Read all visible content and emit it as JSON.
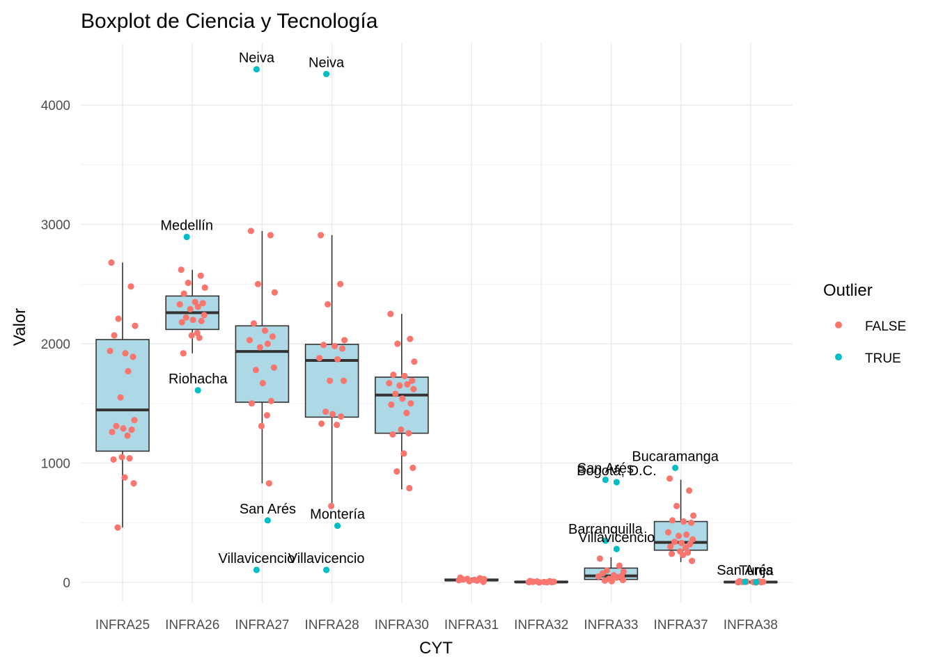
{
  "chart_data": {
    "type": "box",
    "title": "Boxplot de Ciencia y Tecnología",
    "xlabel": "CYT",
    "ylabel": "Valor",
    "ylim": [
      -150,
      4400
    ],
    "yticks": [
      0,
      1000,
      2000,
      3000,
      4000
    ],
    "categories": [
      "INFRA25",
      "INFRA26",
      "INFRA27",
      "INFRA28",
      "INFRA30",
      "INFRA31",
      "INFRA32",
      "INFRA33",
      "INFRA37",
      "INFRA38"
    ],
    "grid": true,
    "box_fill": "#add8e6",
    "boxes": [
      {
        "category": "INFRA25",
        "lower": 460,
        "q1": 1100,
        "median": 1445,
        "q3": 2035,
        "upper": 2680
      },
      {
        "category": "INFRA26",
        "lower": 1920,
        "q1": 2120,
        "median": 2260,
        "q3": 2400,
        "upper": 2620
      },
      {
        "category": "INFRA27",
        "lower": 830,
        "q1": 1510,
        "median": 1935,
        "q3": 2150,
        "upper": 2945
      },
      {
        "category": "INFRA28",
        "lower": 640,
        "q1": 1385,
        "median": 1860,
        "q3": 1995,
        "upper": 2910
      },
      {
        "category": "INFRA30",
        "lower": 780,
        "q1": 1250,
        "median": 1570,
        "q3": 1720,
        "upper": 2250
      },
      {
        "category": "INFRA31",
        "lower": 5,
        "q1": 15,
        "median": 20,
        "q3": 28,
        "upper": 40
      },
      {
        "category": "INFRA32",
        "lower": 0,
        "q1": 2,
        "median": 4,
        "q3": 7,
        "upper": 12
      },
      {
        "category": "INFRA33",
        "lower": 10,
        "q1": 25,
        "median": 55,
        "q3": 120,
        "upper": 210
      },
      {
        "category": "INFRA37",
        "lower": 170,
        "q1": 270,
        "median": 335,
        "q3": 510,
        "upper": 860
      },
      {
        "category": "INFRA38",
        "lower": 0,
        "q1": 1,
        "median": 3,
        "q3": 6,
        "upper": 10
      }
    ],
    "points": [
      {
        "category": "INFRA25",
        "outlier": false,
        "values": [
          2680,
          2480,
          2210,
          2150,
          2070,
          1920,
          1890,
          1940,
          1770,
          1550,
          1360,
          1310,
          1290,
          1280,
          1260,
          1230,
          1050,
          1040,
          1030,
          880,
          830,
          460
        ]
      },
      {
        "category": "INFRA26",
        "outlier": false,
        "values": [
          2620,
          2570,
          2510,
          2470,
          2420,
          2350,
          2340,
          2330,
          2310,
          2290,
          2240,
          2220,
          2200,
          2190,
          2180,
          2090,
          2070,
          2050,
          1920
        ]
      },
      {
        "category": "INFRA26",
        "outlier": true,
        "values": [
          2895,
          1610
        ],
        "labels": [
          "Medellín",
          "Riohacha"
        ]
      },
      {
        "category": "INFRA27",
        "outlier": false,
        "values": [
          2945,
          2910,
          2500,
          2430,
          2170,
          2110,
          2060,
          2030,
          2000,
          1970,
          1800,
          1780,
          1670,
          1520,
          1500,
          1400,
          1310,
          830
        ]
      },
      {
        "category": "INFRA27",
        "outlier": true,
        "values": [
          4300,
          520,
          105
        ],
        "labels": [
          "Neiva",
          "San Arés",
          "Villavicencio"
        ]
      },
      {
        "category": "INFRA28",
        "outlier": false,
        "values": [
          2910,
          2500,
          2330,
          2030,
          1990,
          1980,
          1960,
          1880,
          1870,
          1690,
          1690,
          1430,
          1410,
          1390,
          1330,
          1320,
          640
        ]
      },
      {
        "category": "INFRA28",
        "outlier": true,
        "values": [
          4260,
          475,
          105
        ],
        "labels": [
          "Neiva",
          "Montería",
          "Villavicencio"
        ]
      },
      {
        "category": "INFRA30",
        "outlier": false,
        "values": [
          2250,
          2040,
          2000,
          1850,
          1740,
          1730,
          1690,
          1670,
          1660,
          1650,
          1620,
          1580,
          1540,
          1500,
          1490,
          1420,
          1280,
          1250,
          1240,
          1080,
          960,
          930,
          790
        ]
      },
      {
        "category": "INFRA31",
        "outlier": false,
        "values": [
          40,
          35,
          30,
          28,
          25,
          22,
          20,
          18,
          15,
          10,
          5
        ]
      },
      {
        "category": "INFRA32",
        "outlier": false,
        "values": [
          12,
          10,
          8,
          6,
          5,
          4,
          3,
          2,
          1,
          0
        ]
      },
      {
        "category": "INFRA33",
        "outlier": false,
        "values": [
          200,
          140,
          100,
          90,
          75,
          60,
          55,
          50,
          40,
          30,
          20,
          15,
          10
        ]
      },
      {
        "category": "INFRA33",
        "outlier": true,
        "values": [
          860,
          840,
          350,
          280
        ],
        "labels": [
          "San Arés",
          "Bogotá, D.C.",
          "Barranquilla",
          "Villavicencio"
        ]
      },
      {
        "category": "INFRA37",
        "outlier": false,
        "values": [
          870,
          770,
          640,
          560,
          520,
          510,
          500,
          420,
          400,
          390,
          360,
          340,
          330,
          320,
          300,
          290,
          260,
          250,
          240,
          230,
          180
        ]
      },
      {
        "category": "INFRA37",
        "outlier": true,
        "values": [
          960
        ],
        "labels": [
          "Bucaramanga"
        ]
      },
      {
        "category": "INFRA38",
        "outlier": false,
        "values": [
          10,
          8,
          6,
          5,
          4,
          3,
          2,
          1,
          0
        ]
      },
      {
        "category": "INFRA38",
        "outlier": true,
        "values": [
          5,
          3
        ],
        "labels": [
          "San Arés",
          "Tunja"
        ]
      }
    ],
    "legend": {
      "title": "Outlier",
      "entries": [
        {
          "label": "FALSE",
          "color": "#f8766d"
        },
        {
          "label": "TRUE",
          "color": "#00bfc4"
        }
      ]
    }
  }
}
